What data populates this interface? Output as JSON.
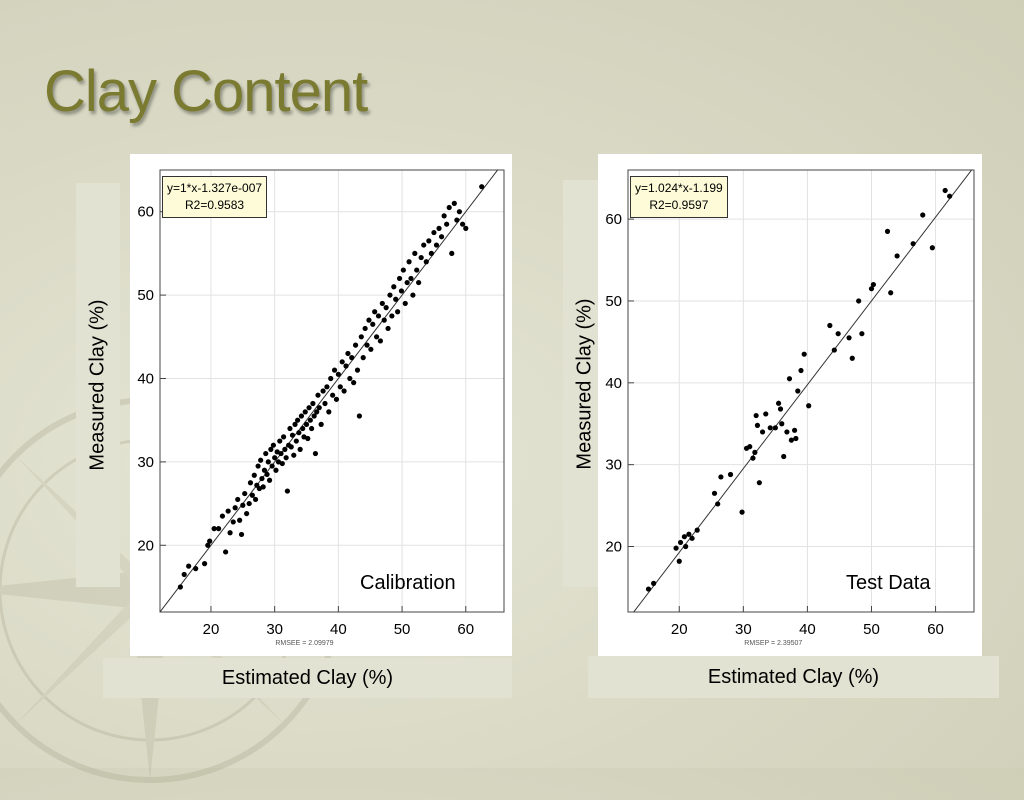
{
  "slide": {
    "title": "Clay Content"
  },
  "chart_data": [
    {
      "type": "scatter",
      "title": "",
      "label": "Calibration",
      "xlabel": "Estimated Clay  (%)",
      "ylabel": "Measured Clay  (%)",
      "fit_equation": "y=1*x-1.327e-007",
      "r2_text": "R2=0.9583",
      "footer": "RMSEE = 2.09979",
      "xlim": [
        12,
        66
      ],
      "ylim": [
        12,
        65
      ],
      "xticks": [
        20,
        30,
        40,
        50,
        60
      ],
      "yticks": [
        20,
        30,
        40,
        50,
        60
      ],
      "fit": {
        "slope": 1,
        "intercept": 0
      },
      "grid": true,
      "points": [
        [
          15.2,
          15.0
        ],
        [
          15.8,
          16.5
        ],
        [
          16.5,
          17.5
        ],
        [
          17.6,
          17.2
        ],
        [
          19.0,
          17.8
        ],
        [
          19.5,
          20.0
        ],
        [
          19.8,
          20.5
        ],
        [
          20.5,
          22.0
        ],
        [
          21.2,
          22.0
        ],
        [
          21.8,
          23.5
        ],
        [
          22.3,
          19.2
        ],
        [
          22.7,
          24.1
        ],
        [
          23.0,
          21.5
        ],
        [
          23.5,
          22.8
        ],
        [
          23.8,
          24.5
        ],
        [
          24.2,
          25.5
        ],
        [
          24.5,
          23.0
        ],
        [
          24.8,
          21.3
        ],
        [
          25.0,
          24.8
        ],
        [
          25.3,
          26.2
        ],
        [
          25.6,
          23.8
        ],
        [
          26.0,
          25.0
        ],
        [
          26.2,
          27.5
        ],
        [
          26.5,
          26.0
        ],
        [
          26.8,
          28.4
        ],
        [
          27.0,
          25.5
        ],
        [
          27.2,
          27.2
        ],
        [
          27.4,
          29.5
        ],
        [
          27.6,
          26.8
        ],
        [
          27.8,
          30.2
        ],
        [
          28.0,
          28.0
        ],
        [
          28.2,
          27.0
        ],
        [
          28.4,
          29.0
        ],
        [
          28.6,
          31.0
        ],
        [
          28.8,
          28.5
        ],
        [
          29.0,
          30.0
        ],
        [
          29.2,
          27.8
        ],
        [
          29.4,
          31.5
        ],
        [
          29.6,
          29.5
        ],
        [
          29.8,
          32.0
        ],
        [
          30.0,
          30.5
        ],
        [
          30.2,
          29.0
        ],
        [
          30.4,
          31.2
        ],
        [
          30.6,
          30.0
        ],
        [
          30.8,
          32.5
        ],
        [
          31.0,
          31.0
        ],
        [
          31.2,
          29.8
        ],
        [
          31.4,
          33.0
        ],
        [
          31.6,
          31.5
        ],
        [
          31.8,
          30.5
        ],
        [
          32.0,
          26.5
        ],
        [
          32.2,
          32.0
        ],
        [
          32.4,
          34.0
        ],
        [
          32.6,
          31.8
        ],
        [
          32.8,
          33.2
        ],
        [
          33.0,
          30.8
        ],
        [
          33.2,
          34.5
        ],
        [
          33.4,
          32.5
        ],
        [
          33.6,
          35.0
        ],
        [
          33.8,
          33.5
        ],
        [
          34.0,
          31.5
        ],
        [
          34.2,
          35.5
        ],
        [
          34.4,
          34.0
        ],
        [
          34.6,
          33.0
        ],
        [
          34.8,
          36.0
        ],
        [
          35.0,
          34.5
        ],
        [
          35.2,
          32.8
        ],
        [
          35.4,
          36.5
        ],
        [
          35.6,
          35.0
        ],
        [
          35.8,
          34.0
        ],
        [
          36.0,
          37.0
        ],
        [
          36.2,
          35.5
        ],
        [
          36.4,
          31.0
        ],
        [
          36.6,
          36.0
        ],
        [
          36.8,
          38.0
        ],
        [
          37.0,
          36.5
        ],
        [
          37.3,
          34.5
        ],
        [
          37.6,
          38.5
        ],
        [
          37.9,
          37.0
        ],
        [
          38.2,
          39.0
        ],
        [
          38.5,
          36.0
        ],
        [
          38.8,
          40.0
        ],
        [
          39.1,
          38.0
        ],
        [
          39.4,
          41.0
        ],
        [
          39.7,
          37.5
        ],
        [
          40.0,
          40.5
        ],
        [
          40.3,
          39.0
        ],
        [
          40.6,
          42.0
        ],
        [
          40.9,
          38.5
        ],
        [
          41.2,
          41.5
        ],
        [
          41.5,
          43.0
        ],
        [
          41.8,
          40.0
        ],
        [
          42.1,
          42.5
        ],
        [
          42.4,
          39.5
        ],
        [
          42.7,
          44.0
        ],
        [
          43.0,
          41.0
        ],
        [
          43.3,
          35.5
        ],
        [
          43.6,
          45.0
        ],
        [
          43.9,
          42.5
        ],
        [
          44.2,
          46.0
        ],
        [
          44.5,
          44.0
        ],
        [
          44.8,
          47.0
        ],
        [
          45.1,
          43.5
        ],
        [
          45.4,
          46.5
        ],
        [
          45.7,
          48.0
        ],
        [
          46.0,
          45.0
        ],
        [
          46.3,
          47.5
        ],
        [
          46.6,
          44.5
        ],
        [
          46.9,
          49.0
        ],
        [
          47.2,
          47.0
        ],
        [
          47.5,
          48.5
        ],
        [
          47.8,
          46.0
        ],
        [
          48.1,
          50.0
        ],
        [
          48.4,
          47.5
        ],
        [
          48.7,
          51.0
        ],
        [
          49.0,
          49.5
        ],
        [
          49.3,
          48.0
        ],
        [
          49.6,
          52.0
        ],
        [
          49.9,
          50.5
        ],
        [
          50.2,
          53.0
        ],
        [
          50.5,
          49.0
        ],
        [
          50.8,
          51.5
        ],
        [
          51.1,
          54.0
        ],
        [
          51.4,
          52.0
        ],
        [
          51.7,
          50.0
        ],
        [
          52.0,
          55.0
        ],
        [
          52.3,
          53.0
        ],
        [
          52.6,
          51.5
        ],
        [
          53.0,
          54.5
        ],
        [
          53.4,
          56.0
        ],
        [
          53.8,
          54.0
        ],
        [
          54.2,
          56.5
        ],
        [
          54.6,
          55.0
        ],
        [
          55.0,
          57.5
        ],
        [
          55.4,
          56.0
        ],
        [
          55.8,
          58.0
        ],
        [
          56.2,
          57.0
        ],
        [
          56.6,
          59.5
        ],
        [
          57.0,
          58.5
        ],
        [
          57.4,
          60.5
        ],
        [
          57.8,
          55.0
        ],
        [
          58.2,
          61.0
        ],
        [
          58.6,
          59.0
        ],
        [
          59.0,
          60.0
        ],
        [
          59.5,
          58.5
        ],
        [
          60.0,
          58.0
        ],
        [
          62.5,
          63.0
        ]
      ]
    },
    {
      "type": "scatter",
      "title": "",
      "label": "Test Data",
      "xlabel": "Estimated Clay  (%)",
      "ylabel": "Measured Clay  (%)",
      "fit_equation": "y=1.024*x-1.199",
      "r2_text": "R2=0.9597",
      "footer": "RMSEP = 2.39507",
      "xlim": [
        12,
        66
      ],
      "ylim": [
        12,
        66
      ],
      "xticks": [
        20,
        30,
        40,
        50,
        60
      ],
      "yticks": [
        20,
        30,
        40,
        50,
        60
      ],
      "fit": {
        "slope": 1.024,
        "intercept": -1.199
      },
      "grid": true,
      "points": [
        [
          15.2,
          14.8
        ],
        [
          16.0,
          15.5
        ],
        [
          19.5,
          19.8
        ],
        [
          20.0,
          18.2
        ],
        [
          20.2,
          20.5
        ],
        [
          20.8,
          21.2
        ],
        [
          21.0,
          20.0
        ],
        [
          21.5,
          21.5
        ],
        [
          22.0,
          21.0
        ],
        [
          22.8,
          22.0
        ],
        [
          25.5,
          26.5
        ],
        [
          26.0,
          25.2
        ],
        [
          26.5,
          28.5
        ],
        [
          28.0,
          28.8
        ],
        [
          29.8,
          24.2
        ],
        [
          30.5,
          32.0
        ],
        [
          31.0,
          32.2
        ],
        [
          31.5,
          30.8
        ],
        [
          31.8,
          31.5
        ],
        [
          32.0,
          36.0
        ],
        [
          32.2,
          34.8
        ],
        [
          32.5,
          27.8
        ],
        [
          33.0,
          34.0
        ],
        [
          33.5,
          36.2
        ],
        [
          34.2,
          34.5
        ],
        [
          35.0,
          34.5
        ],
        [
          35.5,
          37.5
        ],
        [
          35.8,
          36.8
        ],
        [
          36.0,
          35.0
        ],
        [
          36.3,
          31.0
        ],
        [
          36.8,
          34.0
        ],
        [
          37.2,
          40.5
        ],
        [
          37.5,
          33.0
        ],
        [
          38.0,
          34.2
        ],
        [
          38.2,
          33.2
        ],
        [
          38.5,
          39.0
        ],
        [
          39.0,
          41.5
        ],
        [
          39.5,
          43.5
        ],
        [
          40.2,
          37.2
        ],
        [
          43.5,
          47.0
        ],
        [
          44.2,
          44.0
        ],
        [
          44.8,
          46.0
        ],
        [
          46.5,
          45.5
        ],
        [
          47.0,
          43.0
        ],
        [
          48.0,
          50.0
        ],
        [
          48.5,
          46.0
        ],
        [
          50.0,
          51.5
        ],
        [
          50.3,
          52.0
        ],
        [
          52.5,
          58.5
        ],
        [
          53.0,
          51.0
        ],
        [
          54.0,
          55.5
        ],
        [
          56.5,
          57.0
        ],
        [
          58.0,
          60.5
        ],
        [
          59.5,
          56.5
        ],
        [
          61.5,
          63.5
        ],
        [
          62.2,
          62.8
        ]
      ]
    }
  ]
}
